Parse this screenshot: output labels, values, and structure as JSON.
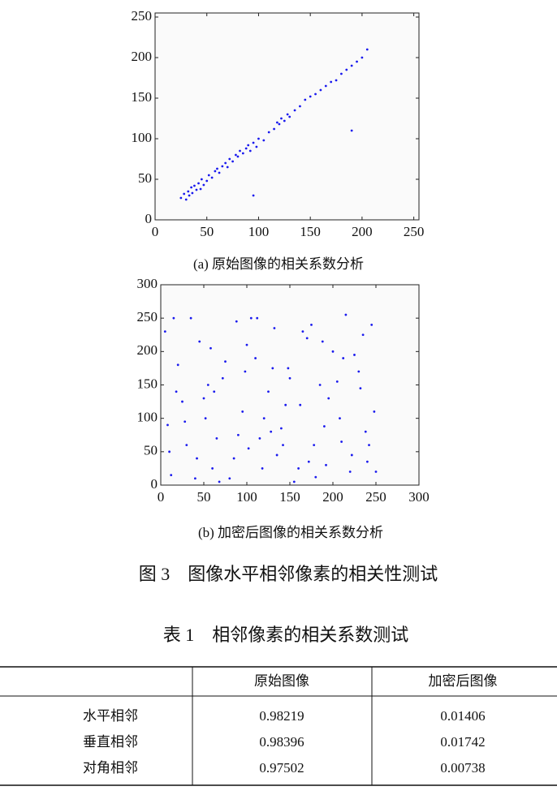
{
  "chart_data": [
    {
      "type": "scatter",
      "caption": "(a) 原始图像的相关系数分析",
      "color": "#1a1aee",
      "xlim": [
        0,
        255
      ],
      "ylim": [
        0,
        255
      ],
      "xticks": [
        0,
        50,
        100,
        150,
        200,
        250
      ],
      "yticks": [
        0,
        50,
        100,
        150,
        200,
        250
      ],
      "x": [
        25,
        28,
        30,
        32,
        33,
        35,
        36,
        38,
        40,
        42,
        44,
        45,
        47,
        50,
        52,
        55,
        58,
        60,
        62,
        65,
        68,
        70,
        72,
        75,
        78,
        80,
        82,
        85,
        88,
        90,
        92,
        95,
        98,
        100,
        105,
        110,
        115,
        118,
        120,
        122,
        125,
        128,
        130,
        135,
        140,
        145,
        150,
        155,
        160,
        165,
        170,
        175,
        180,
        185,
        190,
        195,
        200,
        205,
        190,
        95
      ],
      "values": [
        27,
        32,
        25,
        35,
        30,
        40,
        33,
        42,
        37,
        45,
        38,
        50,
        43,
        48,
        55,
        52,
        60,
        63,
        58,
        66,
        70,
        65,
        75,
        72,
        80,
        78,
        85,
        82,
        88,
        92,
        85,
        95,
        90,
        100,
        98,
        108,
        112,
        120,
        118,
        125,
        122,
        130,
        127,
        135,
        140,
        148,
        152,
        155,
        160,
        165,
        170,
        172,
        180,
        185,
        190,
        195,
        200,
        210,
        110,
        30
      ]
    },
    {
      "type": "scatter",
      "caption": "(b) 加密后图像的相关系数分析",
      "color": "#1a1aee",
      "xlim": [
        0,
        300
      ],
      "ylim": [
        0,
        300
      ],
      "xticks": [
        0,
        50,
        100,
        150,
        200,
        250,
        300
      ],
      "yticks": [
        0,
        50,
        100,
        150,
        200,
        250,
        300
      ],
      "x": [
        5,
        12,
        20,
        28,
        35,
        42,
        50,
        58,
        65,
        72,
        80,
        88,
        95,
        102,
        110,
        118,
        125,
        132,
        140,
        148,
        155,
        162,
        170,
        178,
        185,
        192,
        200,
        208,
        215,
        222,
        230,
        238,
        245,
        250,
        8,
        18,
        30,
        45,
        60,
        75,
        90,
        105,
        120,
        135,
        150,
        165,
        180,
        195,
        210,
        225,
        240,
        15,
        40,
        55,
        85,
        100,
        115,
        130,
        145,
        160,
        175,
        190,
        205,
        220,
        235,
        248,
        25,
        68,
        98,
        142,
        188,
        232,
        10,
        52,
        112,
        172,
        212,
        242,
        62,
        128
      ],
      "values": [
        230,
        15,
        180,
        95,
        250,
        40,
        130,
        205,
        70,
        160,
        10,
        245,
        110,
        55,
        190,
        25,
        140,
        235,
        85,
        175,
        5,
        120,
        220,
        60,
        150,
        30,
        200,
        100,
        255,
        45,
        170,
        80,
        240,
        20,
        90,
        140,
        60,
        215,
        25,
        185,
        75,
        250,
        100,
        45,
        160,
        230,
        12,
        130,
        65,
        195,
        35,
        250,
        10,
        150,
        40,
        210,
        70,
        175,
        120,
        25,
        240,
        88,
        155,
        20,
        225,
        110,
        125,
        5,
        170,
        60,
        215,
        145,
        50,
        100,
        250,
        35,
        190,
        60,
        140,
        80
      ]
    }
  ],
  "figure_caption": "图 3　图像水平相邻像素的相关性测试",
  "table": {
    "caption": "表 1　相邻像素的相关系数测试",
    "header": [
      "原始图像",
      "加密后图像"
    ],
    "rows": [
      {
        "label": "水平相邻",
        "values": [
          0.98219,
          0.01406
        ]
      },
      {
        "label": "垂直相邻",
        "values": [
          0.98396,
          0.01742
        ]
      },
      {
        "label": "对角相邻",
        "values": [
          0.97502,
          0.00738
        ]
      }
    ]
  }
}
